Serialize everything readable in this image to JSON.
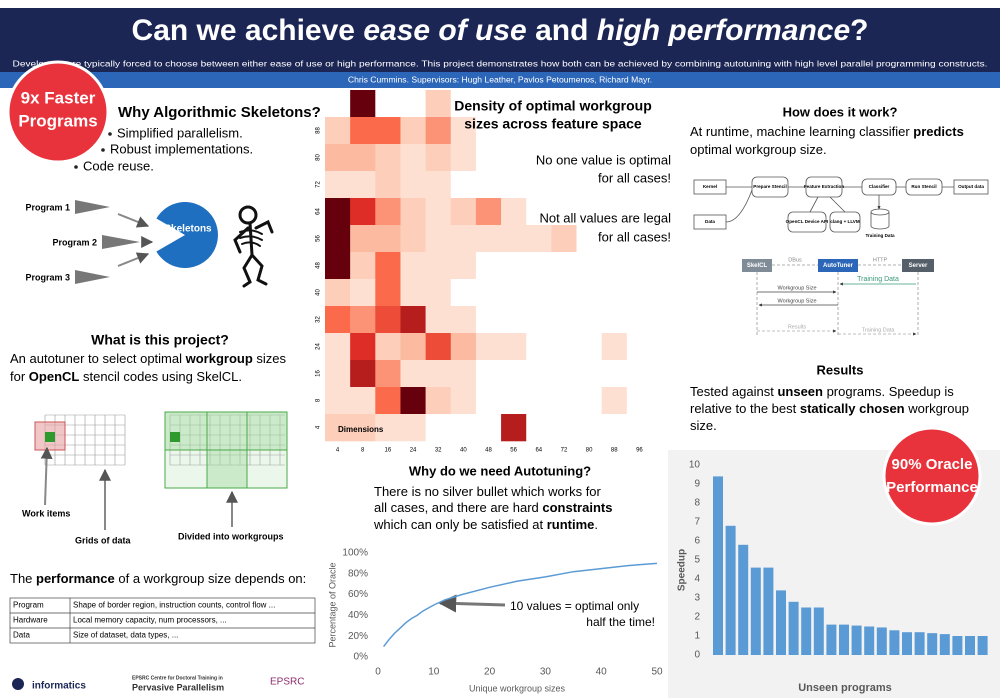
{
  "header": {
    "title": [
      "Can we achieve ",
      "ease of use",
      " and ",
      "high performance",
      "?"
    ],
    "subtitle": "Developers are typically forced to choose between either ease of use or high performance. This project demonstrates how both can be achieved by combining autotuning with high level parallel programming constructs.",
    "authors": "Chris Cummins. Supervisors: Hugh Leather, Pavlos Petoumenos, Richard Mayr."
  },
  "badges": [
    {
      "lines": [
        "9x Faster",
        "Programs"
      ]
    },
    {
      "lines": [
        "90% Oracle",
        "Performance"
      ]
    }
  ],
  "skeletons": {
    "heading": "Why Algorithmic Skeletons?",
    "bullets": [
      "Simplified parallelism.",
      "Robust implementations.",
      "Code reuse."
    ],
    "programs": [
      "Program 1",
      "Program 2",
      "Program 3"
    ],
    "label": "Skeletons"
  },
  "project": {
    "heading": "What is this project?",
    "text": [
      [
        "An autotuner to select optimal ",
        "workgroup",
        " sizes"
      ],
      [
        "for ",
        "OpenCL",
        " stencil codes using SkelCL."
      ]
    ],
    "labels": [
      "Work items",
      "Grids of data",
      "Divided into workgroups"
    ],
    "performance": [
      "The ",
      "performance",
      " of a workgroup size depends on:"
    ],
    "table": [
      [
        "Program",
        "Shape of border region, instruction counts, control flow ..."
      ],
      [
        "Hardware",
        "Local memory capacity, num processors, ..."
      ],
      [
        "Data",
        "Size of dataset, data types, ..."
      ]
    ]
  },
  "logos": [
    "informatics",
    "EPSRC Centre for Doctoral Training in",
    "Pervasive Parallelism",
    "EPSRC"
  ],
  "autotuning": {
    "heading": "Why do we need Autotuning?",
    "text": [
      [
        "There is no silver bullet which works for"
      ],
      [
        "all cases, and there are hard ",
        "constraints"
      ],
      [
        "which can only be satisfied at ",
        "runtime",
        "."
      ]
    ]
  },
  "how": {
    "heading": "How does it work?",
    "text": [
      [
        "At runtime, machine learning classifier ",
        "predicts"
      ],
      [
        "optimal workgroup size."
      ]
    ],
    "flow": [
      "Kernel",
      "Data",
      "Prepare Stencil",
      "Feature Extraction",
      "Classifier",
      "Run Stencil",
      "Output data",
      "OpenCL Device API",
      "clang + LLVM",
      "Training Data"
    ],
    "sequence": [
      "SkelCL",
      "AutoTuner",
      "Server",
      "DBus",
      "HTTP",
      "Training Data",
      "Workgroup Size",
      "Workgroup Size",
      "Results",
      "Training Data"
    ]
  },
  "results": {
    "heading": "Results",
    "text": [
      [
        "Tested against ",
        "unseen",
        " programs. Speedup is"
      ],
      [
        "relative to the best ",
        "statically chosen",
        " workgroup"
      ],
      [
        "size."
      ]
    ]
  },
  "chart_data": [
    {
      "type": "heatmap",
      "cmap": "Reds",
      "annotations": [
        [
          "Density of optimal workgroup",
          "sizes across feature space"
        ],
        [
          "No one value is optimal",
          "for all cases!"
        ],
        [
          "Not all values are legal",
          "for all cases!"
        ]
      ],
      "axis_label": "Dimensions",
      "categories": [
        4,
        8,
        16,
        24,
        32,
        40,
        48,
        56,
        64,
        72,
        80,
        88,
        96
      ],
      "rows": [
        null,
        88,
        80,
        72,
        64,
        56,
        48,
        40,
        32,
        24,
        16,
        8,
        4
      ],
      "values": [
        [
          0,
          10,
          0,
          0,
          2,
          0,
          0,
          0,
          0,
          0,
          0,
          0,
          0
        ],
        [
          2,
          5,
          5,
          2,
          4,
          1,
          0,
          0,
          0,
          0,
          0,
          0,
          0
        ],
        [
          3,
          3,
          2,
          1,
          2,
          1,
          0,
          0,
          0,
          0,
          0,
          0,
          0
        ],
        [
          1,
          1,
          2,
          1,
          1,
          0,
          0,
          0,
          0,
          0,
          0,
          0,
          0
        ],
        [
          10,
          7,
          4,
          2,
          1,
          2,
          4,
          1,
          0,
          0,
          0,
          0,
          0
        ],
        [
          10,
          3,
          3,
          2,
          1,
          1,
          1,
          1,
          1,
          2,
          0,
          0,
          0
        ],
        [
          10,
          2,
          5,
          1,
          1,
          1,
          0,
          0,
          0,
          0,
          0,
          0,
          0
        ],
        [
          2,
          1,
          5,
          1,
          1,
          0,
          0,
          0,
          0,
          0,
          0,
          0,
          0
        ],
        [
          5,
          4,
          6,
          8,
          1,
          1,
          0,
          0,
          0,
          0,
          0,
          0,
          0
        ],
        [
          1,
          7,
          2,
          3,
          6,
          3,
          1,
          1,
          0,
          0,
          0,
          1,
          0
        ],
        [
          1,
          8,
          4,
          1,
          1,
          1,
          0,
          0,
          0,
          0,
          0,
          0,
          0
        ],
        [
          1,
          1,
          5,
          10,
          2,
          1,
          0,
          0,
          0,
          0,
          0,
          1,
          0
        ],
        [
          2,
          2,
          1,
          1,
          0,
          0,
          0,
          8,
          0,
          0,
          0,
          0,
          0
        ]
      ]
    },
    {
      "type": "line",
      "ylabel": "Percentage of Oracle",
      "xlabel": "Unique workgroup sizes",
      "color": "#5b9bd5",
      "annotation": [
        "10 values = optimal only",
        "half the time!"
      ],
      "x": [
        1,
        2,
        3,
        4,
        5,
        6,
        7,
        8,
        9,
        10,
        12,
        15,
        20,
        25,
        30,
        35,
        40,
        45,
        50
      ],
      "values": [
        10,
        17,
        23,
        28,
        33,
        37,
        40,
        44,
        47,
        50,
        55,
        60,
        67,
        73,
        77,
        82,
        85,
        88,
        90
      ],
      "xlim": [
        0,
        50
      ],
      "xticks": [
        0,
        10,
        20,
        30,
        40,
        50
      ],
      "ylim": [
        0,
        100
      ],
      "yticks": [
        {
          "value": 0,
          "label": "0%"
        },
        {
          "value": 20,
          "label": "20%"
        },
        {
          "value": 40,
          "label": "40%"
        },
        {
          "value": 60,
          "label": "60%"
        },
        {
          "value": 80,
          "label": "80%"
        },
        {
          "value": 100,
          "label": "100%"
        }
      ]
    },
    {
      "type": "bar",
      "ylabel": "Speedup",
      "xlabel": "Unseen programs",
      "color": "#5b9bd5",
      "values": [
        9.4,
        6.8,
        5.8,
        4.6,
        4.6,
        3.4,
        2.8,
        2.5,
        2.5,
        1.6,
        1.6,
        1.55,
        1.5,
        1.45,
        1.3,
        1.2,
        1.2,
        1.15,
        1.1,
        1.0,
        1.0,
        1.0
      ],
      "ylim": [
        0,
        10
      ],
      "yticks": [
        0,
        1,
        2,
        3,
        4,
        5,
        6,
        7,
        8,
        9,
        10
      ]
    }
  ]
}
